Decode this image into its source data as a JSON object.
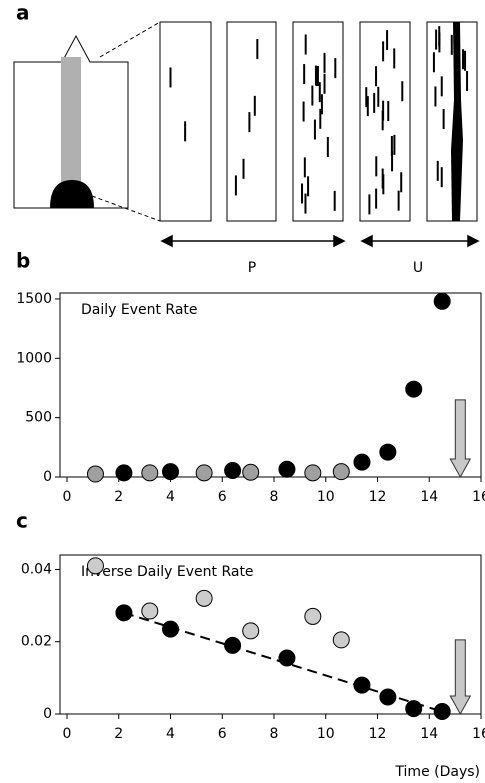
{
  "panel_labels": [
    "a",
    "b",
    "c"
  ],
  "diagram": {
    "labels": [
      "P",
      "U"
    ]
  },
  "chart_data": [
    {
      "type": "scatter",
      "title": "Daily Event Rate",
      "xlim": [
        0,
        16
      ],
      "xticks": [
        0,
        2,
        4,
        6,
        8,
        10,
        12,
        14,
        16
      ],
      "ylim": [
        0,
        1550
      ],
      "yticks": [
        0,
        500,
        1000,
        1500
      ],
      "series": [
        {
          "color": "#a0a0a0",
          "x": [
            1.1,
            3.2,
            5.3,
            7.1,
            9.5,
            10.6
          ],
          "values": [
            25,
            35,
            35,
            40,
            35,
            45
          ]
        },
        {
          "color": "#000000",
          "x": [
            2.2,
            4.0,
            6.4,
            8.5,
            11.4,
            12.4,
            13.4,
            14.5
          ],
          "values": [
            35,
            45,
            55,
            65,
            125,
            210,
            740,
            1480
          ]
        }
      ],
      "arrow": {
        "x": 15.2,
        "values": [
          650,
          0
        ]
      }
    },
    {
      "type": "scatter",
      "title": "Inverse Daily Event Rate",
      "xlabel": "Time  (Days)",
      "xlim": [
        0,
        16
      ],
      "xticks": [
        0,
        2,
        4,
        6,
        8,
        10,
        12,
        14,
        16
      ],
      "ylim": [
        0,
        0.044
      ],
      "yticks": [
        0,
        0.02,
        0.04
      ],
      "series": [
        {
          "color": "#cccccc",
          "x": [
            1.1,
            3.2,
            5.3,
            7.1,
            9.5,
            10.6
          ],
          "values": [
            0.041,
            0.0285,
            0.032,
            0.023,
            0.027,
            0.0205
          ]
        },
        {
          "color": "#000000",
          "x": [
            2.2,
            4.0,
            6.4,
            8.5,
            11.4,
            12.4,
            13.4,
            14.5
          ],
          "values": [
            0.028,
            0.0235,
            0.019,
            0.0155,
            0.008,
            0.0047,
            0.0015,
            0.0007
          ]
        }
      ],
      "trend": {
        "x": [
          2.2,
          14.8
        ],
        "values": [
          0.028,
          0
        ]
      },
      "arrow": {
        "x": 15.2,
        "values": [
          0.0205,
          0
        ]
      }
    }
  ]
}
